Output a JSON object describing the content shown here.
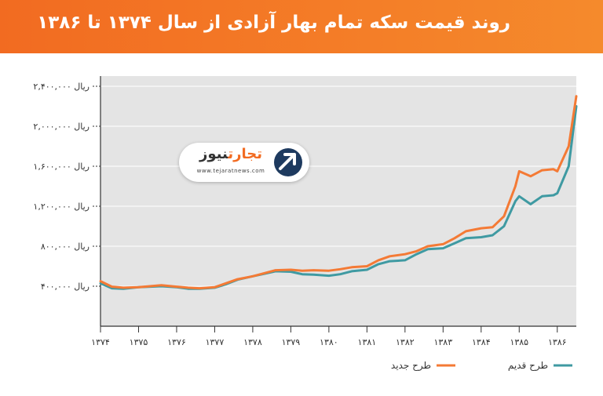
{
  "header": {
    "title": "روند قیمت سکه تمام بهار آزادی از سال ۱۳۷۴ تا ۱۳۸۶"
  },
  "logo": {
    "name_part1": "تجارت",
    "name_part2": "نیوز",
    "url": "www.tejaratnews.com"
  },
  "colors": {
    "header": "#f26b21",
    "plot_bg": "#e4e4e4",
    "new_series": "#f47a35",
    "old_series": "#3f9aa2"
  },
  "chart_data": {
    "type": "line",
    "title": "روند قیمت سکه تمام بهار آزادی از سال ۱۳۷۴ تا ۱۳۸۶",
    "xlabel": "",
    "ylabel": "",
    "xlim": [
      1374,
      1386.5
    ],
    "ylim": [
      0,
      2400000
    ],
    "grid": true,
    "legend_position": "bottom-right",
    "x_ticks": [
      1374,
      1375,
      1376,
      1377,
      1378,
      1379,
      1380,
      1381,
      1382,
      1383,
      1384,
      1385,
      1386
    ],
    "x_tick_labels": [
      "۱۳۷۴",
      "۱۳۷۵",
      "۱۳۷۶",
      "۱۳۷۷",
      "۱۳۷۸",
      "۱۳۷۹",
      "۱۳۸۰",
      "۱۳۸۱",
      "۱۳۸۲",
      "۱۳۸۳",
      "۱۳۸۴",
      "۱۳۸۵",
      "۱۳۸۶"
    ],
    "y_ticks": [
      400000,
      800000,
      1200000,
      1600000,
      2000000,
      2400000
    ],
    "y_tick_labels": [
      "ریال ۴۰۰,۰۰۰",
      "ریال ۸۰۰,۰۰۰",
      "ریال ۱,۲۰۰,۰۰۰",
      "ریال ۱,۶۰۰,۰۰۰",
      "ریال ۲,۰۰۰,۰۰۰",
      "ریال ۲,۴۰۰,۰۰۰"
    ],
    "series": [
      {
        "name": "طرح جدید",
        "color": "#f47a35",
        "x": [
          1374,
          1374.3,
          1374.6,
          1375,
          1375.3,
          1375.6,
          1376,
          1376.3,
          1376.6,
          1377,
          1377.3,
          1377.6,
          1378,
          1378.3,
          1378.6,
          1379,
          1379.3,
          1379.6,
          1380,
          1380.3,
          1380.6,
          1381,
          1381.3,
          1381.6,
          1382,
          1382.3,
          1382.6,
          1383,
          1383.3,
          1383.6,
          1384,
          1384.3,
          1384.6,
          1384.9,
          1385,
          1385.3,
          1385.6,
          1385.9,
          1386,
          1386.3,
          1386.5
        ],
        "values": [
          450000,
          395000,
          385000,
          390000,
          400000,
          410000,
          395000,
          385000,
          380000,
          390000,
          430000,
          470000,
          500000,
          530000,
          560000,
          565000,
          555000,
          560000,
          555000,
          570000,
          590000,
          600000,
          660000,
          700000,
          720000,
          750000,
          800000,
          820000,
          880000,
          950000,
          980000,
          990000,
          1100000,
          1400000,
          1550000,
          1500000,
          1560000,
          1570000,
          1550000,
          1800000,
          2300000
        ]
      },
      {
        "name": "طرح قدیم",
        "color": "#3f9aa2",
        "x": [
          1374,
          1374.3,
          1374.6,
          1375,
          1375.3,
          1375.6,
          1376,
          1376.3,
          1376.6,
          1377,
          1377.3,
          1377.6,
          1378,
          1378.3,
          1378.6,
          1379,
          1379.3,
          1379.6,
          1380,
          1380.3,
          1380.6,
          1381,
          1381.3,
          1381.6,
          1382,
          1382.3,
          1382.6,
          1383,
          1383.3,
          1383.6,
          1384,
          1384.3,
          1384.6,
          1384.9,
          1385,
          1385.3,
          1385.6,
          1385.9,
          1386,
          1386.3,
          1386.5
        ],
        "values": [
          430000,
          380000,
          375000,
          390000,
          395000,
          400000,
          390000,
          375000,
          375000,
          385000,
          420000,
          465000,
          500000,
          525000,
          550000,
          545000,
          520000,
          515000,
          505000,
          520000,
          550000,
          565000,
          620000,
          650000,
          660000,
          720000,
          770000,
          780000,
          830000,
          880000,
          890000,
          910000,
          1000000,
          1250000,
          1300000,
          1220000,
          1300000,
          1310000,
          1330000,
          1600000,
          2200000
        ]
      }
    ],
    "legend": [
      {
        "name": "طرح جدید",
        "color": "#f47a35"
      },
      {
        "name": "طرح قدیم",
        "color": "#3f9aa2"
      }
    ]
  }
}
